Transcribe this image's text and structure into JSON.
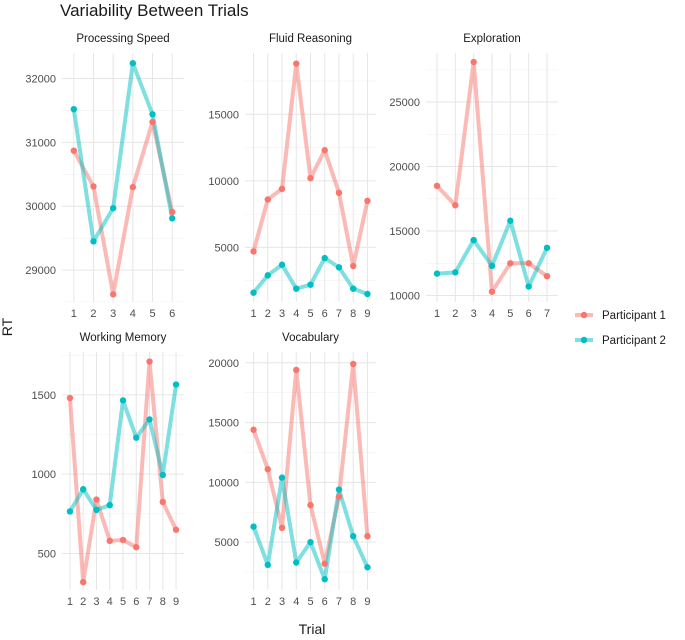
{
  "chart_data": {
    "type": "line",
    "title": "Variability Between Trials",
    "xlabel": "Trial",
    "ylabel": "RT",
    "legend": {
      "position": "right",
      "entries": [
        {
          "name": "Participant 1",
          "color": "#F8766D"
        },
        {
          "name": "Participant 2",
          "color": "#00BFC4"
        }
      ]
    },
    "grid": true,
    "panels": [
      {
        "title": "Processing Speed",
        "x": [
          1,
          2,
          3,
          4,
          5,
          6
        ],
        "ylim": [
          28500,
          32400
        ],
        "yticks": [
          29000,
          30000,
          31000,
          32000
        ],
        "series": [
          {
            "name": "Participant 1",
            "values": [
              30870,
              30310,
              28620,
              30300,
              31320,
              29910
            ]
          },
          {
            "name": "Participant 2",
            "values": [
              31520,
              29450,
              29970,
              32240,
              31440,
              29810
            ]
          }
        ]
      },
      {
        "title": "Fluid Reasoning",
        "x": [
          1,
          2,
          3,
          4,
          5,
          6,
          7,
          8,
          9
        ],
        "ylim": [
          900,
          19600
        ],
        "yticks": [
          5000,
          10000,
          15000
        ],
        "series": [
          {
            "name": "Participant 1",
            "values": [
              4700,
              8600,
              9400,
              18800,
              10200,
              12300,
              9100,
              3600,
              8500
            ]
          },
          {
            "name": "Participant 2",
            "values": [
              1600,
              2900,
              3700,
              1900,
              2200,
              4200,
              3500,
              1900,
              1500
            ]
          }
        ]
      },
      {
        "title": "Exploration",
        "x": [
          1,
          2,
          3,
          4,
          5,
          6,
          7
        ],
        "ylim": [
          9500,
          28800
        ],
        "yticks": [
          10000,
          15000,
          20000,
          25000
        ],
        "series": [
          {
            "name": "Participant 1",
            "values": [
              18500,
              17000,
              28100,
              10300,
              12500,
              12500,
              11500
            ]
          },
          {
            "name": "Participant 2",
            "values": [
              11700,
              11800,
              14300,
              12300,
              15800,
              10700,
              13700
            ]
          }
        ]
      },
      {
        "title": "Working Memory",
        "x": [
          1,
          2,
          3,
          4,
          5,
          6,
          7,
          8,
          9
        ],
        "ylim": [
          270,
          1770
        ],
        "yticks": [
          500,
          1000,
          1500
        ],
        "series": [
          {
            "name": "Participant 1",
            "values": [
              1480,
              320,
              840,
              580,
              585,
              540,
              1710,
              825,
              650
            ]
          },
          {
            "name": "Participant 2",
            "values": [
              765,
              905,
              775,
              805,
              1465,
              1230,
              1345,
              995,
              1565
            ]
          }
        ]
      },
      {
        "title": "Vocabulary",
        "x": [
          1,
          2,
          3,
          4,
          5,
          6,
          7,
          8,
          9
        ],
        "ylim": [
          1000,
          20900
        ],
        "yticks": [
          5000,
          10000,
          15000,
          20000
        ],
        "series": [
          {
            "name": "Participant 1",
            "values": [
              14400,
              11100,
              6200,
              19400,
              8100,
              3200,
              8800,
              19900,
              5500
            ]
          },
          {
            "name": "Participant 2",
            "values": [
              6300,
              3100,
              10400,
              3300,
              5000,
              1900,
              9400,
              5500,
              2900
            ]
          }
        ]
      }
    ]
  }
}
